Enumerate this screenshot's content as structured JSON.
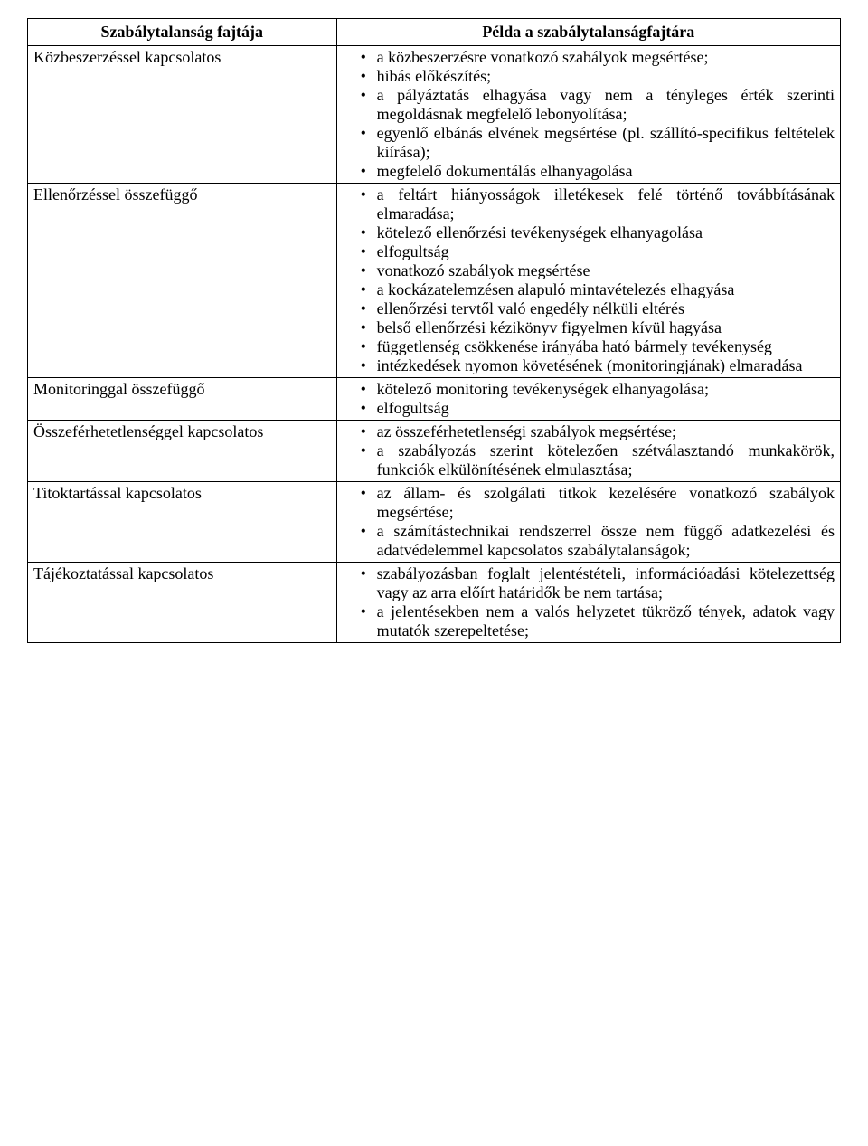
{
  "table": {
    "header": {
      "col1": "Szabálytalanság fajtája",
      "col2": "Példa a szabálytalanságfajtára"
    },
    "rows": [
      {
        "category": "Közbeszerzéssel kapcsolatos",
        "items": [
          "a közbeszerzésre vonatkozó szabályok megsértése;",
          "hibás előkészítés;",
          "a pályáztatás elhagyása vagy nem a tényleges érték szerinti megoldásnak megfelelő lebonyolítása;",
          "egyenlő elbánás elvének megsértése (pl. szállító-specifikus feltételek kiírása);",
          "megfelelő dokumentálás elhanyagolása"
        ]
      },
      {
        "category": "Ellenőrzéssel összefüggő",
        "items": [
          "a feltárt hiányosságok illetékesek felé történő továbbításának elmaradása;",
          "kötelező ellenőrzési tevékenységek elhanyagolása",
          "elfogultság",
          "vonatkozó szabályok megsértése",
          "a kockázatelemzésen alapuló mintavételezés elhagyása",
          "ellenőrzési tervtől való engedély nélküli eltérés",
          "belső ellenőrzési kézikönyv figyelmen kívül hagyása",
          "függetlenség csökkenése irányába ható bármely tevékenység",
          "intézkedések nyomon követésének (monitoringjának) elmaradása"
        ]
      },
      {
        "category": "Monitoringgal összefüggő",
        "items": [
          "kötelező monitoring tevékenységek elhanyagolása;",
          "elfogultság"
        ]
      },
      {
        "category": "Összeférhetetlenséggel kapcsolatos",
        "items": [
          "az összeférhetetlenségi szabályok megsértése;",
          "a szabályozás szerint kötelezően szétválasztandó munkakörök, funkciók elkülönítésének elmulasztása;"
        ]
      },
      {
        "category": "Titoktartással kapcsolatos",
        "items": [
          "az állam- és szolgálati titkok kezelésére vonatkozó szabályok megsértése;",
          "a számítástechnikai rendszerrel össze nem függő adatkezelési és adatvédelemmel kapcsolatos szabálytalanságok;"
        ]
      },
      {
        "category": "Tájékoztatással kapcsolatos",
        "items": [
          "szabályozásban foglalt jelentéstételi, információadási kötelezettség vagy az arra előírt határidők be nem tartása;",
          "a jelentésekben nem a valós helyzetet tükröző tények, adatok vagy mutatók szerepeltetése;"
        ]
      }
    ]
  },
  "styling": {
    "font_family": "Times New Roman",
    "font_size_pt": 14,
    "text_color": "#000000",
    "background_color": "#ffffff",
    "border_color": "#000000",
    "col_left_width_pct": 38,
    "col_right_width_pct": 62,
    "bullet_char": "•"
  }
}
